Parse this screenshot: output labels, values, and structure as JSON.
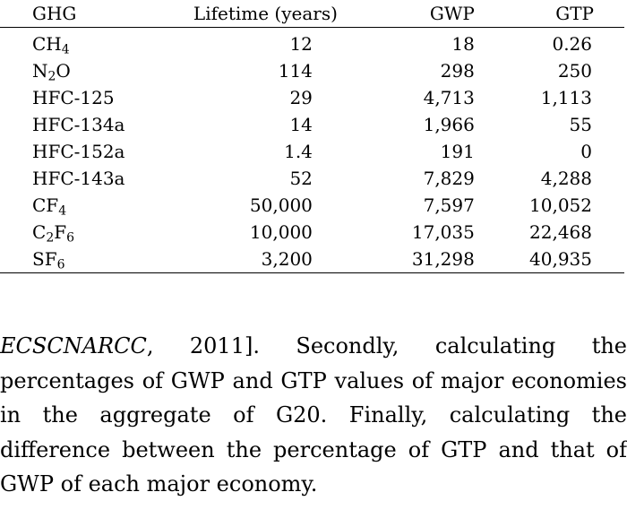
{
  "table": {
    "headers": {
      "ghg": "GHG",
      "lifetime": "Lifetime (years)",
      "gwp": "GWP",
      "gtp": "GTP"
    },
    "rows": [
      {
        "pre": "CH",
        "sub": "4",
        "mid": "",
        "sub2": "",
        "post": "",
        "lifetime": "12",
        "gwp": "18",
        "gtp": "0.26"
      },
      {
        "pre": "N",
        "sub": "2",
        "mid": "O",
        "sub2": "",
        "post": "",
        "lifetime": "114",
        "gwp": "298",
        "gtp": "250"
      },
      {
        "pre": "HFC-125",
        "sub": "",
        "mid": "",
        "sub2": "",
        "post": "",
        "lifetime": "29",
        "gwp": "4,713",
        "gtp": "1,113"
      },
      {
        "pre": "HFC-134a",
        "sub": "",
        "mid": "",
        "sub2": "",
        "post": "",
        "lifetime": "14",
        "gwp": "1,966",
        "gtp": "55"
      },
      {
        "pre": "HFC-152a",
        "sub": "",
        "mid": "",
        "sub2": "",
        "post": "",
        "lifetime": "1.4",
        "gwp": "191",
        "gtp": "0"
      },
      {
        "pre": "HFC-143a",
        "sub": "",
        "mid": "",
        "sub2": "",
        "post": "",
        "lifetime": "52",
        "gwp": "7,829",
        "gtp": "4,288"
      },
      {
        "pre": "CF",
        "sub": "4",
        "mid": "",
        "sub2": "",
        "post": "",
        "lifetime": "50,000",
        "gwp": "7,597",
        "gtp": "10,052"
      },
      {
        "pre": "C",
        "sub": "2",
        "mid": "F",
        "sub2": "6",
        "post": "",
        "lifetime": "10,000",
        "gwp": "17,035",
        "gtp": "22,468"
      },
      {
        "pre": "SF",
        "sub": "6",
        "mid": "",
        "sub2": "",
        "post": "",
        "lifetime": "3,200",
        "gwp": "31,298",
        "gtp": "40,935"
      }
    ]
  },
  "paragraph": {
    "citation": "ECSCNARCC",
    "text": ", 2011].  Secondly, calculating the percentages of GWP and GTP values of major economies in the aggregate of G20.  Finally, calculating the difference between the percentage of GTP and that of GWP of each major economy."
  }
}
